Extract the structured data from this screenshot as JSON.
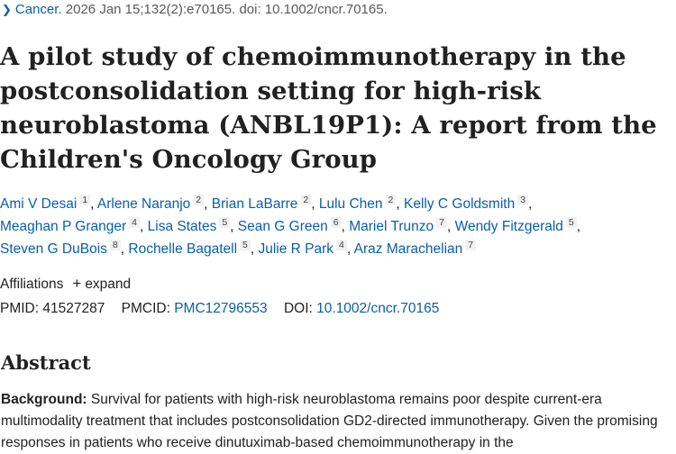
{
  "citation": {
    "journal": "Cancer.",
    "details": "2026 Jan 15;132(2):e70165. doi: 10.1002/cncr.70165."
  },
  "title": "A pilot study of chemoimmunotherapy in the postconsolidation setting for high-risk neuroblastoma (ANBL19P1): A report from the Children's Oncology Group",
  "authors": [
    {
      "name": "Ami V Desai",
      "aff": "1"
    },
    {
      "name": "Arlene Naranjo",
      "aff": "2"
    },
    {
      "name": "Brian LaBarre",
      "aff": "2"
    },
    {
      "name": "Lulu Chen",
      "aff": "2"
    },
    {
      "name": "Kelly C Goldsmith",
      "aff": "3"
    },
    {
      "name": "Meaghan P Granger",
      "aff": "4"
    },
    {
      "name": "Lisa States",
      "aff": "5"
    },
    {
      "name": "Sean G Green",
      "aff": "6"
    },
    {
      "name": "Mariel Trunzo",
      "aff": "7"
    },
    {
      "name": "Wendy Fitzgerald",
      "aff": "5"
    },
    {
      "name": "Steven G DuBois",
      "aff": "8"
    },
    {
      "name": "Rochelle Bagatell",
      "aff": "5"
    },
    {
      "name": "Julie R Park",
      "aff": "4"
    },
    {
      "name": "Araz Marachelian",
      "aff": "7"
    }
  ],
  "affiliations": {
    "label": "Affiliations",
    "expand_label": "expand"
  },
  "identifiers": {
    "pmid_label": "PMID:",
    "pmid": "41527287",
    "pmcid_label": "PMCID:",
    "pmcid": "PMC12796553",
    "doi_label": "DOI:",
    "doi": "10.1002/cncr.70165"
  },
  "abstract": {
    "heading": "Abstract",
    "background_label": "Background:",
    "background_text": "Survival for patients with high-risk neuroblastoma remains poor despite current-era multimodality treatment that includes postconsolidation GD2-directed immunotherapy. Given the promising responses in patients who receive dinutuximab-based chemoimmunotherapy in the"
  }
}
